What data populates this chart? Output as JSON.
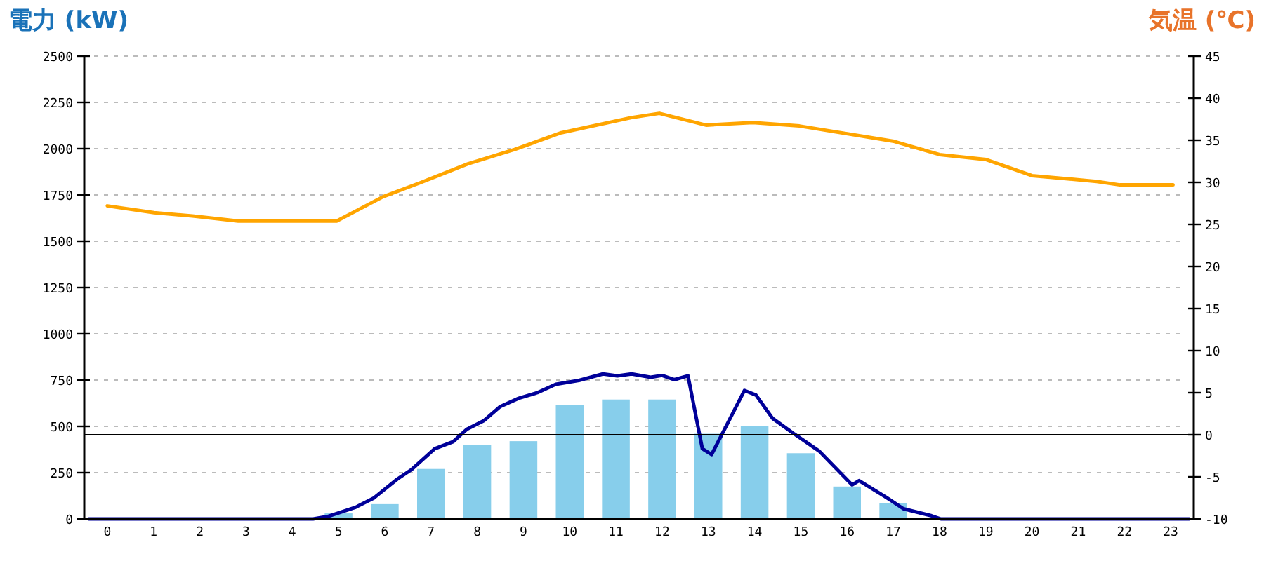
{
  "chart_data": {
    "type": "bar",
    "ylabel": "電力 (kW)",
    "y2label": "気温 (℃)",
    "x": [
      0,
      1,
      2,
      3,
      4,
      5,
      6,
      7,
      8,
      9,
      10,
      11,
      12,
      13,
      14,
      15,
      16,
      17,
      18,
      19,
      20,
      21,
      22,
      23
    ],
    "xlim": [
      -0.5,
      23.5
    ],
    "xticks": [
      0,
      1,
      2,
      3,
      4,
      5,
      6,
      7,
      8,
      9,
      10,
      11,
      12,
      13,
      14,
      15,
      16,
      17,
      18,
      19,
      20,
      21,
      22,
      23
    ],
    "series": [
      {
        "color": "#87ceeb",
        "values": [
          0,
          0,
          0,
          0,
          0,
          30,
          80,
          270,
          400,
          420,
          615,
          645,
          645,
          460,
          500,
          355,
          175,
          85,
          0,
          0,
          0,
          0,
          0,
          0
        ]
      },
      {
        "type": "line",
        "color": "#000099",
        "x": [
          -0.4,
          4.45,
          4.76,
          5.37,
          5.77,
          6.27,
          6.57,
          7.08,
          7.48,
          7.78,
          8.14,
          8.49,
          8.9,
          9.3,
          9.7,
          10.2,
          10.72,
          11.03,
          11.34,
          11.75,
          12.0,
          12.26,
          12.56,
          12.87,
          13.07,
          13.78,
          14.03,
          14.39,
          14.84,
          15.4,
          16.11,
          16.26,
          16.82,
          17.22,
          17.83,
          18.03,
          23.4
        ],
        "values": [
          0,
          0,
          13,
          63,
          114,
          215,
          265,
          379,
          417,
          485,
          530,
          606,
          652,
          682,
          727,
          748,
          783,
          773,
          783,
          765,
          775,
          752,
          773,
          379,
          348,
          694,
          669,
          543,
          462,
          366,
          184,
          207,
          121,
          55,
          17,
          0,
          0
        ]
      },
      {
        "type": "line",
        "color": "#ffa500",
        "axis": "y2",
        "x": [
          0,
          1.01,
          1.84,
          2.83,
          4.96,
          5.97,
          6.79,
          7.8,
          8.81,
          9.82,
          11.34,
          11.94,
          12.95,
          13.96,
          14.97,
          16.99,
          18.0,
          19.01,
          20.0,
          21.4,
          21.9,
          23.05
        ],
        "values": [
          27.2,
          26.4,
          26.0,
          25.4,
          25.4,
          28.3,
          30,
          32.2,
          33.9,
          35.9,
          37.7,
          38.2,
          36.8,
          37.1,
          36.7,
          34.9,
          33.3,
          32.7,
          30.8,
          30.1,
          29.7,
          29.7
        ]
      }
    ],
    "ylim": [
      0,
      2500
    ],
    "yticks": [
      0,
      250,
      500,
      750,
      1000,
      1250,
      1500,
      1750,
      2000,
      2250,
      2500
    ],
    "y2lim": [
      -10,
      45
    ],
    "y2ticks": [
      -10,
      -5,
      0,
      5,
      10,
      15,
      20,
      25,
      30,
      35,
      40,
      45
    ],
    "grid": "y",
    "ref_lines": [
      {
        "axis": "y2",
        "value": 0,
        "color": "#000000"
      }
    ]
  }
}
